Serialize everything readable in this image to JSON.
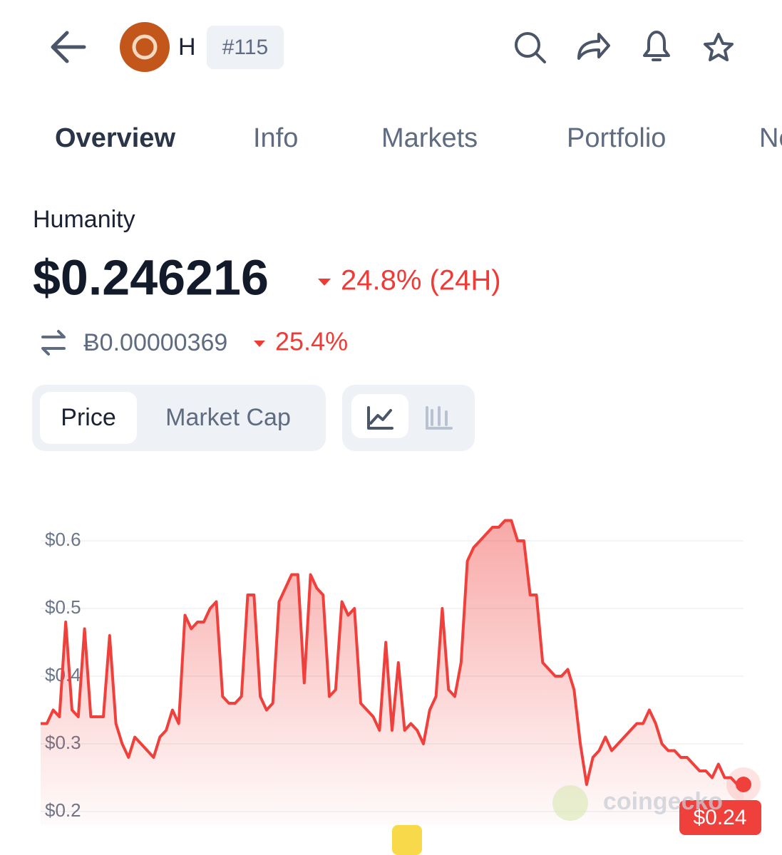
{
  "header": {
    "symbol": "H",
    "rank": "#115"
  },
  "tabs": [
    "Overview",
    "Info",
    "Markets",
    "Portfolio",
    "News"
  ],
  "coin": {
    "name": "Humanity",
    "price": "$0.246216",
    "change_24h": "24.8% (24H)",
    "btc_price": "Ƀ0.00000369",
    "btc_change": "25.4%"
  },
  "toggles": [
    "Price",
    "Market Cap"
  ],
  "watermark": "coingecko",
  "chart_data": {
    "type": "line",
    "color": "#f0403c",
    "values": [
      0.33,
      0.33,
      0.35,
      0.34,
      0.48,
      0.35,
      0.34,
      0.47,
      0.34,
      0.34,
      0.34,
      0.46,
      0.33,
      0.3,
      0.28,
      0.31,
      0.3,
      0.29,
      0.28,
      0.31,
      0.32,
      0.35,
      0.33,
      0.49,
      0.47,
      0.48,
      0.48,
      0.5,
      0.51,
      0.37,
      0.36,
      0.36,
      0.37,
      0.52,
      0.52,
      0.37,
      0.35,
      0.36,
      0.51,
      0.53,
      0.55,
      0.55,
      0.39,
      0.55,
      0.53,
      0.52,
      0.37,
      0.38,
      0.51,
      0.49,
      0.5,
      0.36,
      0.35,
      0.34,
      0.32,
      0.45,
      0.32,
      0.42,
      0.32,
      0.33,
      0.32,
      0.3,
      0.35,
      0.37,
      0.5,
      0.38,
      0.37,
      0.42,
      0.57,
      0.59,
      0.6,
      0.61,
      0.62,
      0.62,
      0.63,
      0.63,
      0.6,
      0.6,
      0.52,
      0.52,
      0.42,
      0.41,
      0.4,
      0.4,
      0.41,
      0.38,
      0.3,
      0.24,
      0.28,
      0.29,
      0.31,
      0.29,
      0.3,
      0.31,
      0.32,
      0.33,
      0.33,
      0.35,
      0.33,
      0.3,
      0.29,
      0.29,
      0.28,
      0.28,
      0.27,
      0.26,
      0.26,
      0.25,
      0.27,
      0.25,
      0.25,
      0.24,
      0.24
    ],
    "last_label": "$0.24",
    "ylim": [
      0.18,
      0.64
    ],
    "yticks": [
      {
        "value": 0.2,
        "label": "$0.2"
      },
      {
        "value": 0.3,
        "label": "$0.3"
      },
      {
        "value": 0.4,
        "label": "$0.4"
      },
      {
        "value": 0.5,
        "label": "$0.5"
      },
      {
        "value": 0.6,
        "label": "$0.6"
      }
    ],
    "grid": true
  }
}
